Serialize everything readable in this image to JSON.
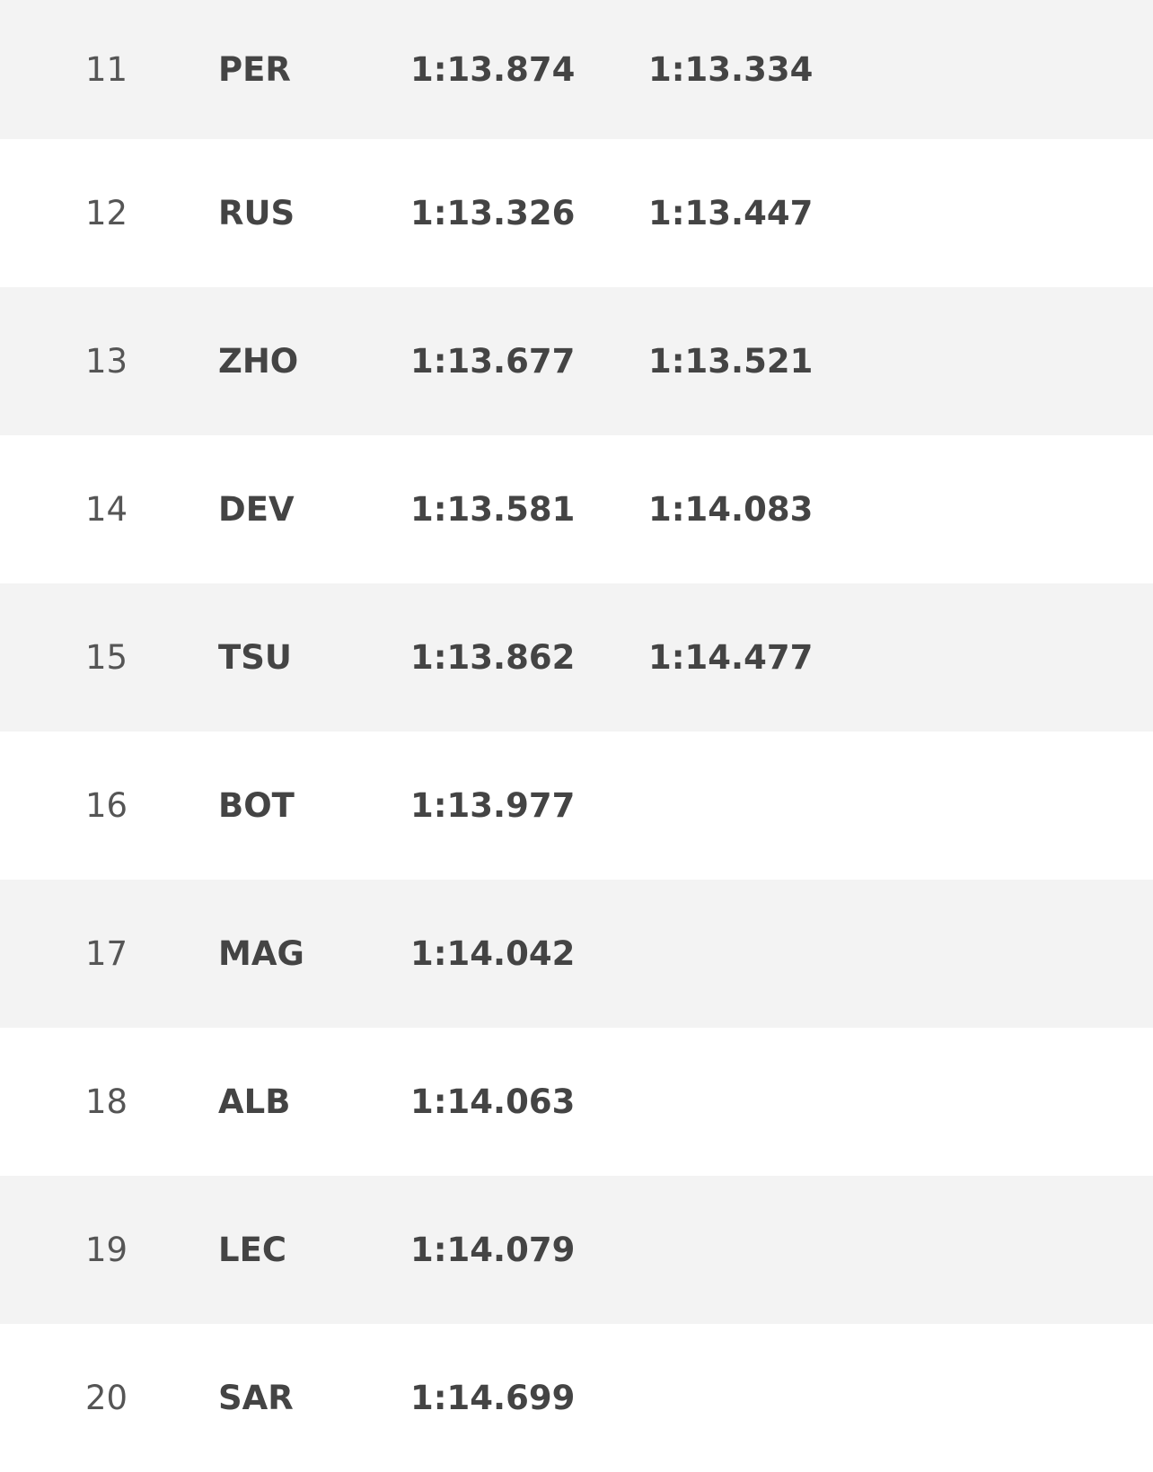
{
  "table": {
    "rows": [
      {
        "position": 11,
        "driver": "PER",
        "q1": "1:13.874",
        "q2": "1:13.334"
      },
      {
        "position": 12,
        "driver": "RUS",
        "q1": "1:13.326",
        "q2": "1:13.447"
      },
      {
        "position": 13,
        "driver": "ZHO",
        "q1": "1:13.677",
        "q2": "1:13.521"
      },
      {
        "position": 14,
        "driver": "DEV",
        "q1": "1:13.581",
        "q2": "1:14.083"
      },
      {
        "position": 15,
        "driver": "TSU",
        "q1": "1:13.862",
        "q2": "1:14.477"
      },
      {
        "position": 16,
        "driver": "BOT",
        "q1": "1:13.977"
      },
      {
        "position": 17,
        "driver": "MAG",
        "q1": "1:14.042"
      },
      {
        "position": 18,
        "driver": "ALB",
        "q1": "1:14.063"
      },
      {
        "position": 19,
        "driver": "LEC",
        "q1": "1:14.079"
      },
      {
        "position": 20,
        "driver": "SAR",
        "q1": "1:14.699"
      }
    ]
  }
}
